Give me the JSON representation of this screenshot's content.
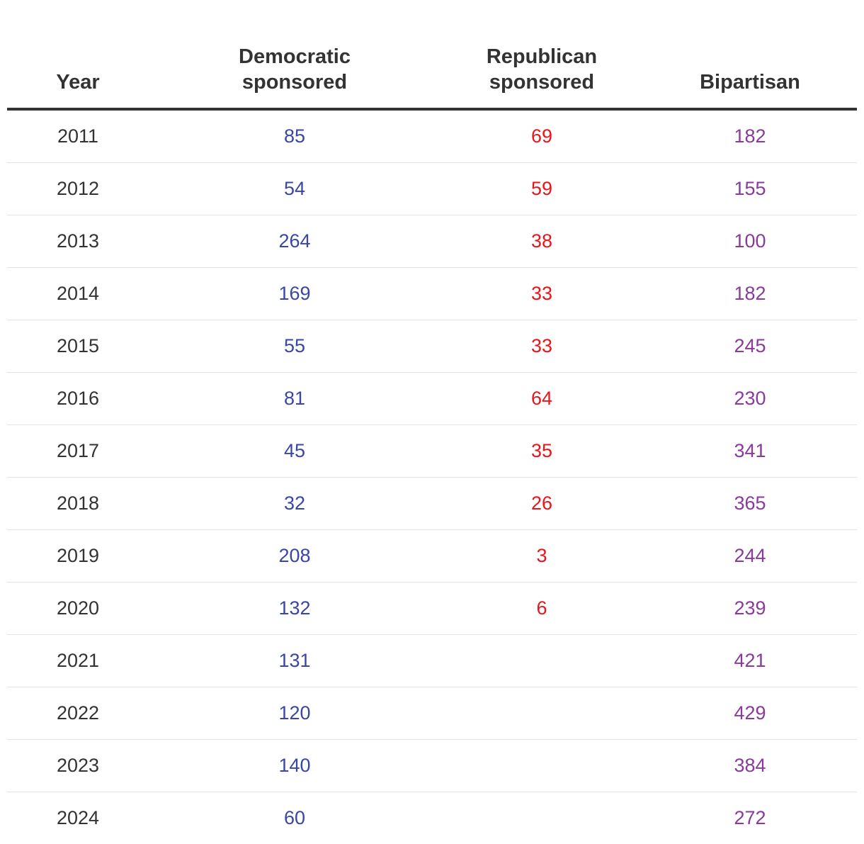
{
  "chart_data": {
    "type": "table",
    "columns": [
      {
        "key": "year",
        "lines": [
          "Year"
        ]
      },
      {
        "key": "dem",
        "lines": [
          "Democratic",
          "sponsored"
        ]
      },
      {
        "key": "rep",
        "lines": [
          "Republican",
          "sponsored"
        ]
      },
      {
        "key": "bip",
        "lines": [
          "Bipartisan"
        ]
      }
    ],
    "colors": {
      "year": "#333333",
      "dem": "#3a46a5",
      "rep": "#e8151b",
      "bip": "#8a3a9c"
    },
    "rows": [
      {
        "year": "2011",
        "dem": "85",
        "rep": "69",
        "bip": "182"
      },
      {
        "year": "2012",
        "dem": "54",
        "rep": "59",
        "bip": "155"
      },
      {
        "year": "2013",
        "dem": "264",
        "rep": "38",
        "bip": "100"
      },
      {
        "year": "2014",
        "dem": "169",
        "rep": "33",
        "bip": "182"
      },
      {
        "year": "2015",
        "dem": "55",
        "rep": "33",
        "bip": "245"
      },
      {
        "year": "2016",
        "dem": "81",
        "rep": "64",
        "bip": "230"
      },
      {
        "year": "2017",
        "dem": "45",
        "rep": "35",
        "bip": "341"
      },
      {
        "year": "2018",
        "dem": "32",
        "rep": "26",
        "bip": "365"
      },
      {
        "year": "2019",
        "dem": "208",
        "rep": "3",
        "bip": "244"
      },
      {
        "year": "2020",
        "dem": "132",
        "rep": "6",
        "bip": "239"
      },
      {
        "year": "2021",
        "dem": "131",
        "rep": "",
        "bip": "421"
      },
      {
        "year": "2022",
        "dem": "120",
        "rep": "",
        "bip": "429"
      },
      {
        "year": "2023",
        "dem": "140",
        "rep": "",
        "bip": "384"
      },
      {
        "year": "2024",
        "dem": "60",
        "rep": "",
        "bip": "272"
      }
    ]
  }
}
